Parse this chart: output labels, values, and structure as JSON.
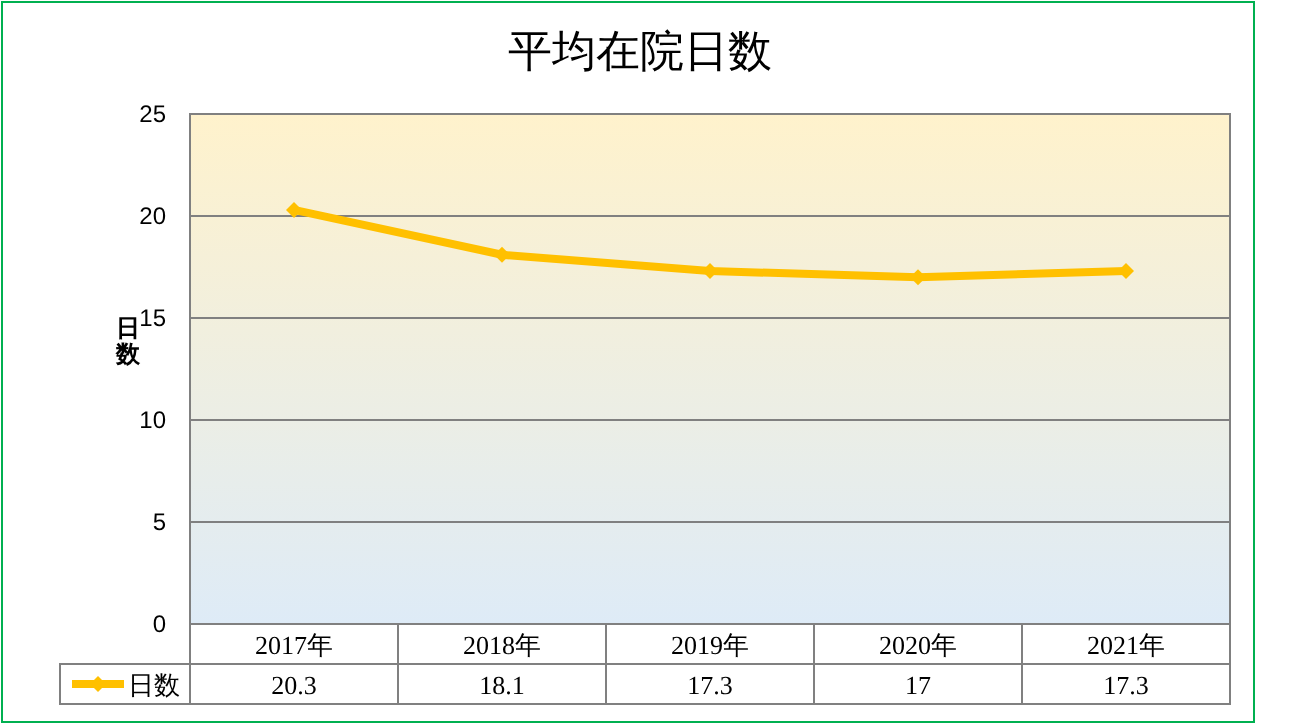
{
  "chart_data": {
    "type": "line",
    "title": "平均在院日数",
    "ylabel": "日数",
    "categories": [
      "2017年",
      "2018年",
      "2019年",
      "2020年",
      "2021年"
    ],
    "series": [
      {
        "name": "日数",
        "color": "#ffc000",
        "values": [
          20.3,
          18.1,
          17.3,
          17,
          17.3
        ]
      }
    ],
    "ylim": [
      0,
      25
    ],
    "yticks": [
      0,
      5,
      10,
      15,
      20,
      25
    ],
    "grid": "y",
    "marker": "diamond",
    "line_style": "solid",
    "data_labels": true,
    "legend": "bottom"
  }
}
